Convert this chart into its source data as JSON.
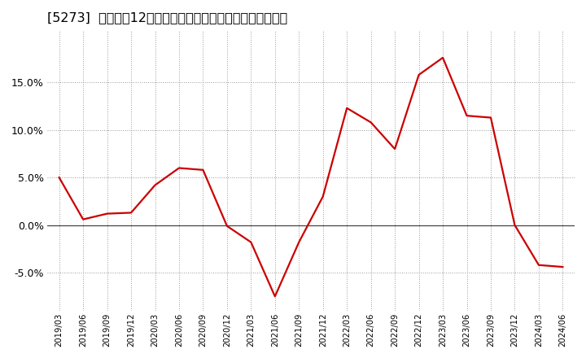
{
  "title": "[5273]  売上高の12か月移動合計の対前年同期増減率の推移",
  "x_labels": [
    "2019/03",
    "2019/06",
    "2019/09",
    "2019/12",
    "2020/03",
    "2020/06",
    "2020/09",
    "2020/12",
    "2021/03",
    "2021/06",
    "2021/09",
    "2021/12",
    "2022/03",
    "2022/06",
    "2022/09",
    "2022/12",
    "2023/03",
    "2023/06",
    "2023/09",
    "2023/12",
    "2024/03",
    "2024/06"
  ],
  "y_values": [
    5.0,
    0.6,
    1.2,
    1.3,
    4.2,
    6.0,
    5.8,
    -0.1,
    -1.8,
    -7.5,
    -1.8,
    3.0,
    12.3,
    10.8,
    8.0,
    15.8,
    17.6,
    11.5,
    11.3,
    0.0,
    -4.2,
    -4.4
  ],
  "line_color": "#cc0000",
  "background_color": "#ffffff",
  "plot_bg_color": "#ffffff",
  "grid_color": "#999999",
  "ylim": [
    -9.0,
    20.5
  ],
  "yticks": [
    -5.0,
    0.0,
    5.0,
    10.0,
    15.0
  ],
  "zero_line_color": "#444444",
  "title_fontsize": 11.5
}
